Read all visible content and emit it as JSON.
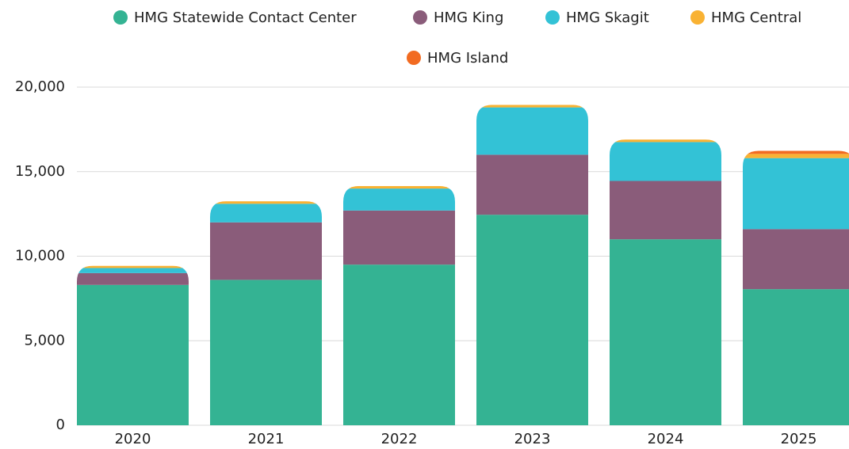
{
  "chart_data": {
    "type": "stacked_bar",
    "categories": [
      "2020",
      "2021",
      "2022",
      "2023",
      "2024",
      "2025"
    ],
    "series": [
      {
        "name": "HMG Statewide Contact Center",
        "color": "#34b393",
        "values": [
          8300,
          8600,
          9500,
          12450,
          11000,
          8050
        ]
      },
      {
        "name": "HMG King",
        "color": "#8a5c7a",
        "values": [
          700,
          3400,
          3200,
          3550,
          3450,
          3550
        ]
      },
      {
        "name": "HMG Skagit",
        "color": "#33c2d6",
        "values": [
          300,
          1100,
          1300,
          2800,
          2300,
          4200
        ]
      },
      {
        "name": "HMG Central",
        "color": "#f9b233",
        "values": [
          130,
          150,
          150,
          150,
          150,
          250
        ]
      },
      {
        "name": "HMG Island",
        "color": "#f26b21",
        "values": [
          0,
          0,
          0,
          0,
          0,
          180
        ]
      }
    ],
    "ylim": [
      0,
      20000
    ],
    "yticks": [
      0,
      {
        "value": 5000,
        "label": "5,000"
      },
      {
        "value": 10000,
        "label": "10,000"
      },
      {
        "value": 15000,
        "label": "15,000"
      },
      {
        "value": 20000,
        "label": "20,000"
      }
    ],
    "grid": true,
    "legend": "top"
  }
}
